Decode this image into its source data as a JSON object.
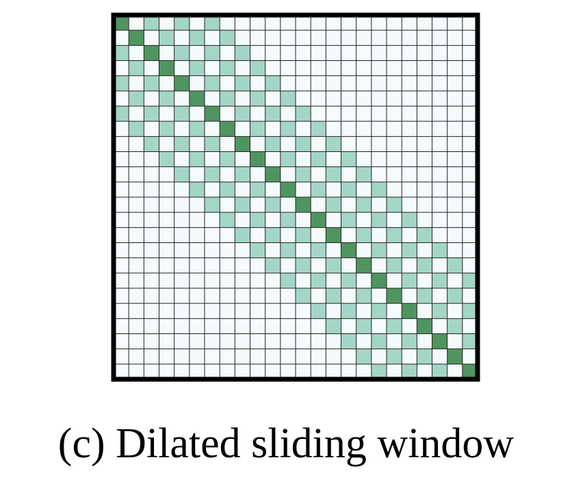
{
  "caption": "(c) Dilated sliding window",
  "matrix": {
    "size": 24,
    "window_offsets": [
      -6,
      -4,
      -2,
      2,
      4,
      6
    ],
    "colors": {
      "empty": "#f5fafc",
      "window": "#a3d6c6",
      "diagonal": "#4f9560",
      "grid_line": "#222222",
      "border": "#000000"
    }
  }
}
